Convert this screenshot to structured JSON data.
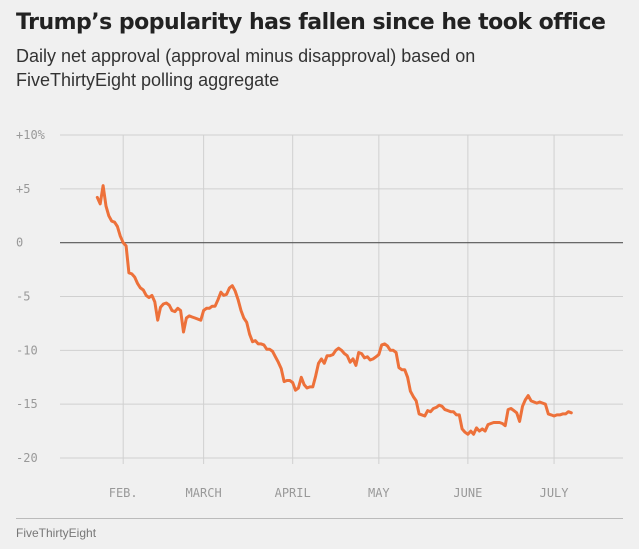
{
  "chart_data": {
    "type": "line",
    "title": "Trump’s popularity has fallen since he took office",
    "subtitle": "Daily net approval (approval minus disapproval) based on FiveThirtyEight polling aggregate",
    "ylim": [
      -20,
      10
    ],
    "yticks": [
      {
        "value": 10,
        "label": "+10%"
      },
      {
        "value": 5,
        "label": "+5"
      },
      {
        "value": 0,
        "label": "0"
      },
      {
        "value": -5,
        "label": "-5"
      },
      {
        "value": -10,
        "label": "-10"
      },
      {
        "value": -15,
        "label": "-15"
      },
      {
        "value": -20,
        "label": "-20"
      }
    ],
    "xticks": [
      {
        "date": "2017-02-01",
        "label": "FEB."
      },
      {
        "date": "2017-03-01",
        "label": "MARCH"
      },
      {
        "date": "2017-04-01",
        "label": "APRIL"
      },
      {
        "date": "2017-05-01",
        "label": "MAY"
      },
      {
        "date": "2017-06-01",
        "label": "JUNE"
      },
      {
        "date": "2017-07-01",
        "label": "JULY"
      }
    ],
    "xlim": [
      "2017-01-10",
      "2017-07-25"
    ],
    "grid": true,
    "series": [
      {
        "color": "#ed713a",
        "points": [
          [
            "2017-01-23",
            4.2
          ],
          [
            "2017-01-24",
            3.6
          ],
          [
            "2017-01-25",
            5.3
          ],
          [
            "2017-01-26",
            3.4
          ],
          [
            "2017-01-27",
            2.5
          ],
          [
            "2017-01-28",
            2.0
          ],
          [
            "2017-01-29",
            1.9
          ],
          [
            "2017-01-30",
            1.5
          ],
          [
            "2017-01-31",
            0.6
          ],
          [
            "2017-02-01",
            0.0
          ],
          [
            "2017-02-02",
            -0.3
          ],
          [
            "2017-02-03",
            -2.8
          ],
          [
            "2017-02-04",
            -2.9
          ],
          [
            "2017-02-05",
            -3.2
          ],
          [
            "2017-02-06",
            -3.8
          ],
          [
            "2017-02-07",
            -4.2
          ],
          [
            "2017-02-08",
            -4.4
          ],
          [
            "2017-02-09",
            -4.9
          ],
          [
            "2017-02-10",
            -5.1
          ],
          [
            "2017-02-11",
            -4.9
          ],
          [
            "2017-02-12",
            -5.5
          ],
          [
            "2017-02-13",
            -7.2
          ],
          [
            "2017-02-14",
            -6.0
          ],
          [
            "2017-02-15",
            -5.7
          ],
          [
            "2017-02-16",
            -5.6
          ],
          [
            "2017-02-17",
            -5.8
          ],
          [
            "2017-02-18",
            -6.3
          ],
          [
            "2017-02-19",
            -6.4
          ],
          [
            "2017-02-20",
            -6.1
          ],
          [
            "2017-02-21",
            -6.3
          ],
          [
            "2017-02-22",
            -8.3
          ],
          [
            "2017-02-23",
            -7.0
          ],
          [
            "2017-02-24",
            -6.8
          ],
          [
            "2017-02-25",
            -6.9
          ],
          [
            "2017-02-26",
            -7.0
          ],
          [
            "2017-02-27",
            -7.1
          ],
          [
            "2017-02-28",
            -7.2
          ],
          [
            "2017-03-01",
            -6.3
          ],
          [
            "2017-03-02",
            -6.1
          ],
          [
            "2017-03-03",
            -6.1
          ],
          [
            "2017-03-04",
            -5.9
          ],
          [
            "2017-03-05",
            -5.9
          ],
          [
            "2017-03-06",
            -5.3
          ],
          [
            "2017-03-07",
            -4.6
          ],
          [
            "2017-03-08",
            -4.9
          ],
          [
            "2017-03-09",
            -4.8
          ],
          [
            "2017-03-10",
            -4.2
          ],
          [
            "2017-03-11",
            -4.0
          ],
          [
            "2017-03-12",
            -4.5
          ],
          [
            "2017-03-13",
            -5.3
          ],
          [
            "2017-03-14",
            -6.3
          ],
          [
            "2017-03-15",
            -7.0
          ],
          [
            "2017-03-16",
            -7.4
          ],
          [
            "2017-03-17",
            -8.5
          ],
          [
            "2017-03-18",
            -9.2
          ],
          [
            "2017-03-19",
            -9.1
          ],
          [
            "2017-03-20",
            -9.4
          ],
          [
            "2017-03-21",
            -9.4
          ],
          [
            "2017-03-22",
            -9.5
          ],
          [
            "2017-03-23",
            -9.9
          ],
          [
            "2017-03-24",
            -9.9
          ],
          [
            "2017-03-25",
            -10.1
          ],
          [
            "2017-03-26",
            -10.6
          ],
          [
            "2017-03-27",
            -11.1
          ],
          [
            "2017-03-28",
            -11.7
          ],
          [
            "2017-03-29",
            -12.9
          ],
          [
            "2017-03-30",
            -12.8
          ],
          [
            "2017-03-31",
            -12.8
          ],
          [
            "2017-04-01",
            -13.0
          ],
          [
            "2017-04-02",
            -13.7
          ],
          [
            "2017-04-03",
            -13.5
          ],
          [
            "2017-04-04",
            -12.5
          ],
          [
            "2017-04-05",
            -13.2
          ],
          [
            "2017-04-06",
            -13.5
          ],
          [
            "2017-04-07",
            -13.4
          ],
          [
            "2017-04-08",
            -13.4
          ],
          [
            "2017-04-09",
            -12.4
          ],
          [
            "2017-04-10",
            -11.2
          ],
          [
            "2017-04-11",
            -10.8
          ],
          [
            "2017-04-12",
            -11.2
          ],
          [
            "2017-04-13",
            -10.5
          ],
          [
            "2017-04-14",
            -10.5
          ],
          [
            "2017-04-15",
            -10.4
          ],
          [
            "2017-04-16",
            -10.0
          ],
          [
            "2017-04-17",
            -9.8
          ],
          [
            "2017-04-18",
            -10.0
          ],
          [
            "2017-04-19",
            -10.3
          ],
          [
            "2017-04-20",
            -10.5
          ],
          [
            "2017-04-21",
            -11.1
          ],
          [
            "2017-04-22",
            -10.8
          ],
          [
            "2017-04-23",
            -11.4
          ],
          [
            "2017-04-24",
            -10.2
          ],
          [
            "2017-04-25",
            -10.3
          ],
          [
            "2017-04-26",
            -10.7
          ],
          [
            "2017-04-27",
            -10.6
          ],
          [
            "2017-04-28",
            -10.9
          ],
          [
            "2017-04-29",
            -10.8
          ],
          [
            "2017-04-30",
            -10.6
          ],
          [
            "2017-05-01",
            -10.4
          ],
          [
            "2017-05-02",
            -9.5
          ],
          [
            "2017-05-03",
            -9.4
          ],
          [
            "2017-05-04",
            -9.6
          ],
          [
            "2017-05-05",
            -10.0
          ],
          [
            "2017-05-06",
            -10.0
          ],
          [
            "2017-05-07",
            -10.2
          ],
          [
            "2017-05-08",
            -11.6
          ],
          [
            "2017-05-09",
            -11.8
          ],
          [
            "2017-05-10",
            -11.8
          ],
          [
            "2017-05-11",
            -12.5
          ],
          [
            "2017-05-12",
            -13.8
          ],
          [
            "2017-05-13",
            -14.3
          ],
          [
            "2017-05-14",
            -14.7
          ],
          [
            "2017-05-15",
            -15.9
          ],
          [
            "2017-05-16",
            -16.0
          ],
          [
            "2017-05-17",
            -16.1
          ],
          [
            "2017-05-18",
            -15.6
          ],
          [
            "2017-05-19",
            -15.7
          ],
          [
            "2017-05-20",
            -15.4
          ],
          [
            "2017-05-21",
            -15.3
          ],
          [
            "2017-05-22",
            -15.1
          ],
          [
            "2017-05-23",
            -15.2
          ],
          [
            "2017-05-24",
            -15.5
          ],
          [
            "2017-05-25",
            -15.6
          ],
          [
            "2017-05-26",
            -15.7
          ],
          [
            "2017-05-27",
            -15.7
          ],
          [
            "2017-05-28",
            -16.0
          ],
          [
            "2017-05-29",
            -16.0
          ],
          [
            "2017-05-30",
            -17.3
          ],
          [
            "2017-05-31",
            -17.6
          ],
          [
            "2017-06-01",
            -17.8
          ],
          [
            "2017-06-02",
            -17.5
          ],
          [
            "2017-06-03",
            -17.8
          ],
          [
            "2017-06-04",
            -17.2
          ],
          [
            "2017-06-05",
            -17.5
          ],
          [
            "2017-06-06",
            -17.3
          ],
          [
            "2017-06-07",
            -17.5
          ],
          [
            "2017-06-08",
            -16.9
          ],
          [
            "2017-06-09",
            -16.8
          ],
          [
            "2017-06-10",
            -16.7
          ],
          [
            "2017-06-11",
            -16.7
          ],
          [
            "2017-06-12",
            -16.7
          ],
          [
            "2017-06-13",
            -16.8
          ],
          [
            "2017-06-14",
            -17.0
          ],
          [
            "2017-06-15",
            -15.5
          ],
          [
            "2017-06-16",
            -15.4
          ],
          [
            "2017-06-17",
            -15.6
          ],
          [
            "2017-06-18",
            -15.8
          ],
          [
            "2017-06-19",
            -16.6
          ],
          [
            "2017-06-20",
            -15.2
          ],
          [
            "2017-06-21",
            -14.6
          ],
          [
            "2017-06-22",
            -14.2
          ],
          [
            "2017-06-23",
            -14.7
          ],
          [
            "2017-06-24",
            -14.8
          ],
          [
            "2017-06-25",
            -14.9
          ],
          [
            "2017-06-26",
            -14.8
          ],
          [
            "2017-06-27",
            -14.9
          ],
          [
            "2017-06-28",
            -15.0
          ],
          [
            "2017-06-29",
            -15.9
          ],
          [
            "2017-06-30",
            -16.0
          ],
          [
            "2017-07-01",
            -16.1
          ],
          [
            "2017-07-02",
            -16.0
          ],
          [
            "2017-07-03",
            -16.0
          ],
          [
            "2017-07-04",
            -15.9
          ],
          [
            "2017-07-05",
            -15.9
          ],
          [
            "2017-07-06",
            -15.7
          ],
          [
            "2017-07-07",
            -15.8
          ]
        ]
      }
    ]
  },
  "source": "FiveThirtyEight"
}
